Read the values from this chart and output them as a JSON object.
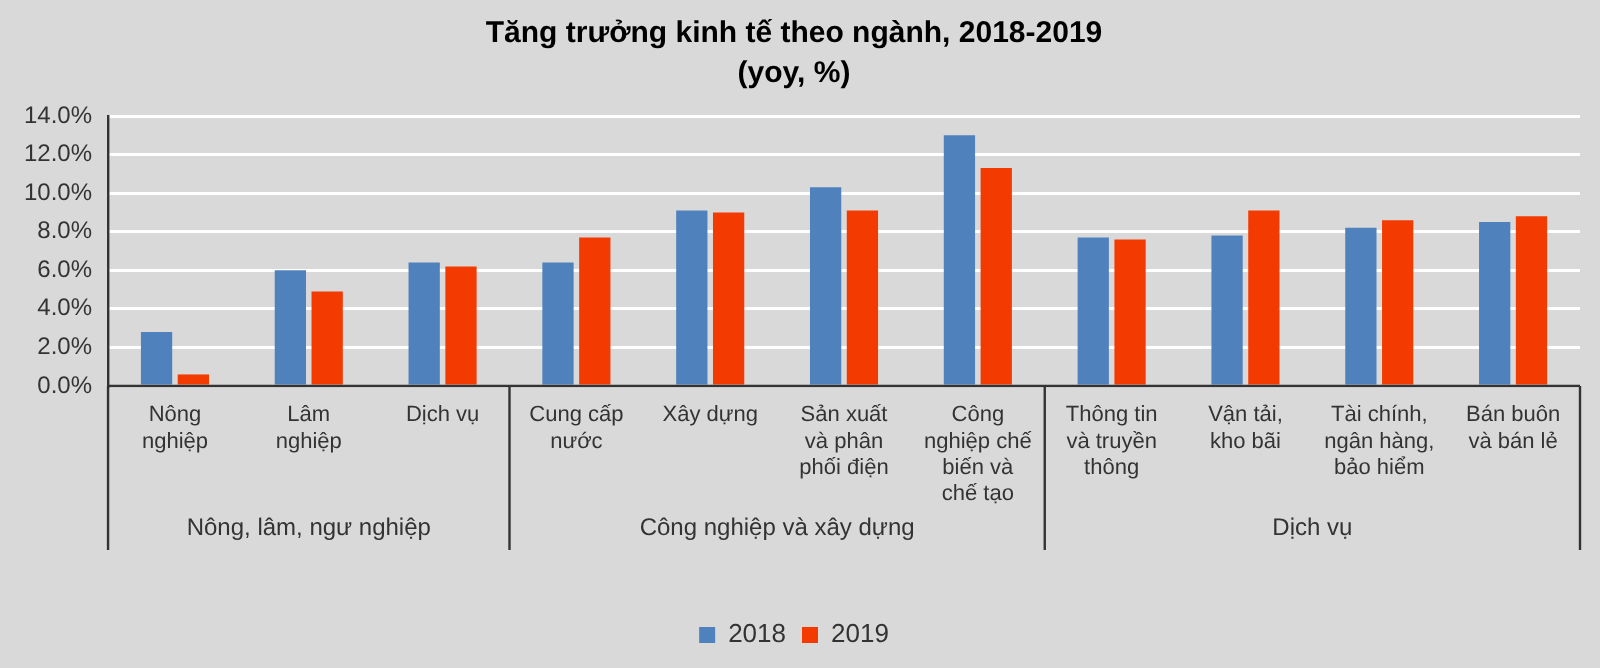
{
  "chart_data": {
    "type": "bar",
    "title": "Tăng trưởng kinh tế theo ngành, 2018-2019",
    "subtitle": "(yoy, %)",
    "categories": [
      "Nông nghiệp",
      "Lâm nghiệp",
      "Dịch vụ",
      "Cung cấp nước",
      "Xây dựng",
      "Sản xuất và phân phối điện",
      "Công nghiệp chế biến và chế tạo",
      "Thông tin và truyền thông",
      "Vận tải, kho bãi",
      "Tài chính, ngân hàng, bảo hiểm",
      "Bán buôn và bán lẻ"
    ],
    "series": [
      {
        "name": "2018",
        "color": "#4f81bd",
        "values": [
          2.8,
          6.0,
          6.4,
          6.4,
          9.1,
          10.3,
          13.0,
          7.7,
          7.8,
          8.2,
          8.5
        ]
      },
      {
        "name": "2019",
        "color": "#f33a00",
        "values": [
          0.6,
          4.9,
          6.2,
          7.7,
          9.0,
          9.1,
          11.3,
          7.6,
          9.1,
          8.6,
          8.8
        ]
      }
    ],
    "ylim": [
      0,
      14
    ],
    "yticks": [
      {
        "value": 0,
        "label": "0.0%"
      },
      {
        "value": 2,
        "label": "2.0%"
      },
      {
        "value": 4,
        "label": "4.0%"
      },
      {
        "value": 6,
        "label": "6.0%"
      },
      {
        "value": 8,
        "label": "8.0%"
      },
      {
        "value": 10,
        "label": "10.0%"
      },
      {
        "value": 12,
        "label": "12.0%"
      },
      {
        "value": 14,
        "label": "14.0%"
      }
    ],
    "annotations": [
      "Nông, lâm, ngư nghiệp",
      "Công nghiệp và xây dựng",
      "Dịch vụ"
    ],
    "grid": "y",
    "legend": "bottom"
  }
}
